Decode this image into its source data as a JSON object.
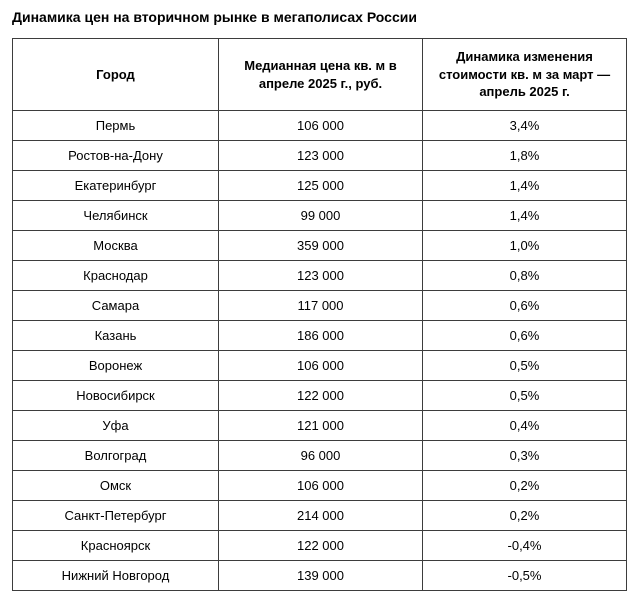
{
  "title": "Динамика цен на вторичном рынке в мегаполисах России",
  "chart_data": {
    "type": "table",
    "title": "Динамика цен на вторичном рынке в мегаполисах России",
    "columns": [
      "Город",
      "Медианная цена кв. м в апреле 2025 г., руб.",
      "Динамика изменения стоимости кв. м за март — апрель 2025 г."
    ],
    "rows": [
      {
        "city": "Пермь",
        "price": "106 000",
        "change": "3,4%"
      },
      {
        "city": "Ростов-на-Дону",
        "price": "123 000",
        "change": "1,8%"
      },
      {
        "city": "Екатеринбург",
        "price": "125 000",
        "change": "1,4%"
      },
      {
        "city": "Челябинск",
        "price": "99 000",
        "change": "1,4%"
      },
      {
        "city": "Москва",
        "price": "359 000",
        "change": "1,0%"
      },
      {
        "city": "Краснодар",
        "price": "123 000",
        "change": "0,8%"
      },
      {
        "city": "Самара",
        "price": "117 000",
        "change": "0,6%"
      },
      {
        "city": "Казань",
        "price": "186 000",
        "change": "0,6%"
      },
      {
        "city": "Воронеж",
        "price": "106 000",
        "change": "0,5%"
      },
      {
        "city": "Новосибирск",
        "price": "122 000",
        "change": "0,5%"
      },
      {
        "city": "Уфа",
        "price": "121 000",
        "change": "0,4%"
      },
      {
        "city": "Волгоград",
        "price": "96 000",
        "change": "0,3%"
      },
      {
        "city": "Омск",
        "price": "106 000",
        "change": "0,2%"
      },
      {
        "city": "Санкт-Петербург",
        "price": "214 000",
        "change": "0,2%"
      },
      {
        "city": "Красноярск",
        "price": "122 000",
        "change": "-0,4%"
      },
      {
        "city": "Нижний Новгород",
        "price": "139 000",
        "change": "-0,5%"
      }
    ]
  }
}
